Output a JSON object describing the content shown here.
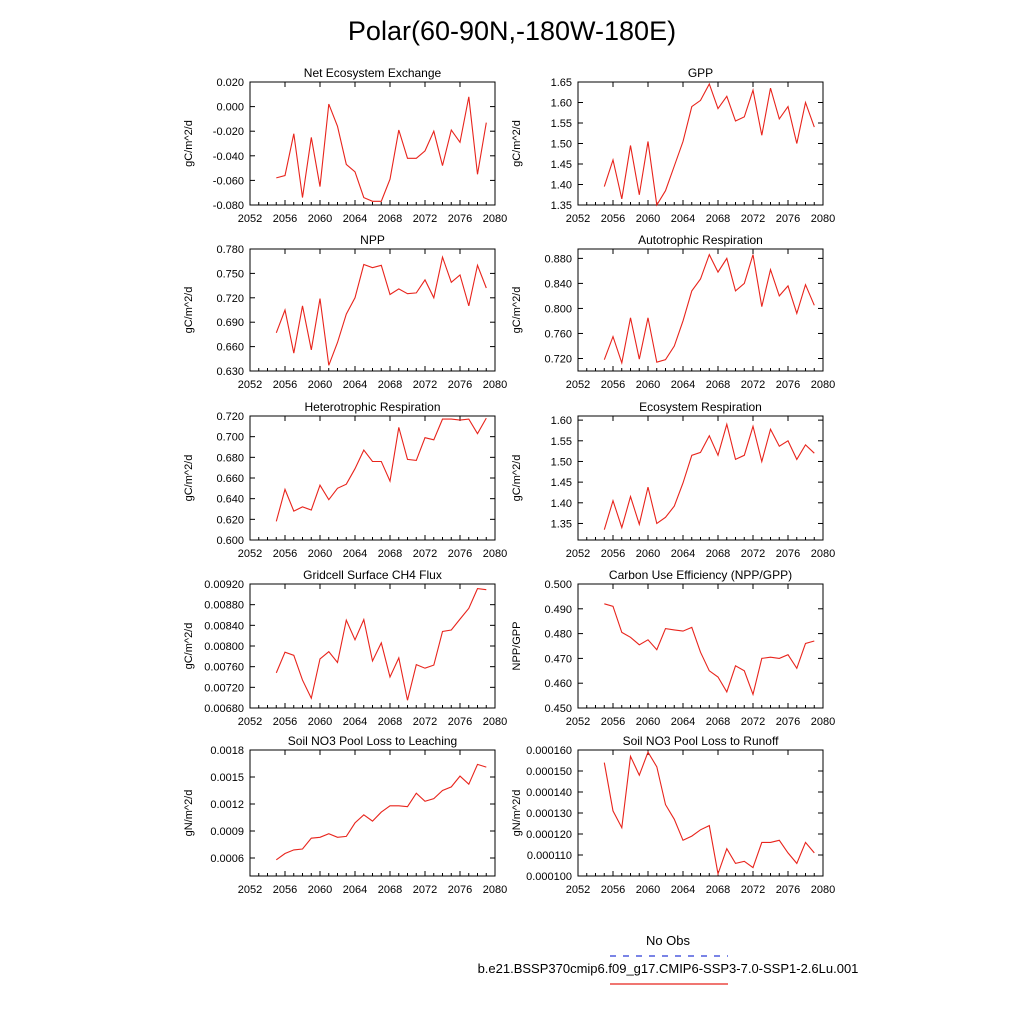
{
  "title": "Polar(60-90N,-180W-180E)",
  "legend": {
    "entries": [
      {
        "label": "No Obs",
        "color": "#2b3bd6",
        "style": "dashed"
      },
      {
        "label": "b.e21.BSSP370cmip6.f09_g17.CMIP6-SSP3-7.0-SSP1-2.6Lu.001",
        "color": "#e8241c",
        "style": "solid"
      }
    ]
  },
  "chart_data": [
    {
      "type": "line",
      "title": "Net Ecosystem Exchange",
      "ylabel": "gC/m^2/d",
      "xlim": [
        2052,
        2080
      ],
      "xticks": [
        "2052",
        "2056",
        "2060",
        "2064",
        "2068",
        "2072",
        "2076",
        "2080"
      ],
      "ylim": [
        -0.08,
        0.02
      ],
      "yticks": [
        "0.020",
        "0.000",
        "-0.020",
        "-0.040",
        "-0.060",
        "-0.080"
      ],
      "ytick_values": [
        0.02,
        0.0,
        -0.02,
        -0.04,
        -0.06,
        -0.08
      ],
      "color": "#e8241c",
      "x": [
        2055,
        2056,
        2057,
        2058,
        2059,
        2060,
        2061,
        2062,
        2063,
        2064,
        2065,
        2066,
        2067,
        2068,
        2069,
        2070,
        2071,
        2072,
        2073,
        2074,
        2075,
        2076,
        2077,
        2078,
        2079
      ],
      "y": [
        -0.058,
        -0.056,
        -0.022,
        -0.074,
        -0.025,
        -0.065,
        0.002,
        -0.016,
        -0.047,
        -0.053,
        -0.074,
        -0.077,
        -0.077,
        -0.059,
        -0.019,
        -0.042,
        -0.042,
        -0.036,
        -0.02,
        -0.048,
        -0.019,
        -0.029,
        0.008,
        -0.055,
        -0.013
      ]
    },
    {
      "type": "line",
      "title": "GPP",
      "ylabel": "gC/m^2/d",
      "xlim": [
        2052,
        2080
      ],
      "xticks": [
        "2052",
        "2056",
        "2060",
        "2064",
        "2068",
        "2072",
        "2076",
        "2080"
      ],
      "ylim": [
        1.35,
        1.65
      ],
      "yticks": [
        "1.65",
        "1.60",
        "1.55",
        "1.50",
        "1.45",
        "1.40",
        "1.35"
      ],
      "ytick_values": [
        1.65,
        1.6,
        1.55,
        1.5,
        1.45,
        1.4,
        1.35
      ],
      "color": "#e8241c",
      "x": [
        2055,
        2056,
        2057,
        2058,
        2059,
        2060,
        2061,
        2062,
        2063,
        2064,
        2065,
        2066,
        2067,
        2068,
        2069,
        2070,
        2071,
        2072,
        2073,
        2074,
        2075,
        2076,
        2077,
        2078,
        2079
      ],
      "y": [
        1.395,
        1.46,
        1.365,
        1.495,
        1.375,
        1.505,
        1.35,
        1.385,
        1.445,
        1.505,
        1.59,
        1.605,
        1.645,
        1.585,
        1.615,
        1.555,
        1.565,
        1.63,
        1.52,
        1.635,
        1.56,
        1.59,
        1.5,
        1.6,
        1.54
      ]
    },
    {
      "type": "line",
      "title": "NPP",
      "ylabel": "gC/m^2/d",
      "xlim": [
        2052,
        2080
      ],
      "xticks": [
        "2052",
        "2056",
        "2060",
        "2064",
        "2068",
        "2072",
        "2076",
        "2080"
      ],
      "ylim": [
        0.63,
        0.78
      ],
      "yticks": [
        "0.780",
        "0.750",
        "0.720",
        "0.690",
        "0.660",
        "0.630"
      ],
      "ytick_values": [
        0.78,
        0.75,
        0.72,
        0.69,
        0.66,
        0.63
      ],
      "color": "#e8241c",
      "x": [
        2055,
        2056,
        2057,
        2058,
        2059,
        2060,
        2061,
        2062,
        2063,
        2064,
        2065,
        2066,
        2067,
        2068,
        2069,
        2070,
        2071,
        2072,
        2073,
        2074,
        2075,
        2076,
        2077,
        2078,
        2079
      ],
      "y": [
        0.677,
        0.705,
        0.652,
        0.71,
        0.656,
        0.719,
        0.637,
        0.665,
        0.7,
        0.72,
        0.761,
        0.757,
        0.76,
        0.724,
        0.731,
        0.725,
        0.726,
        0.742,
        0.72,
        0.77,
        0.739,
        0.748,
        0.71,
        0.76,
        0.732
      ]
    },
    {
      "type": "line",
      "title": "Autotrophic Respiration",
      "ylabel": "gC/m^2/d",
      "xlim": [
        2052,
        2080
      ],
      "xticks": [
        "2052",
        "2056",
        "2060",
        "2064",
        "2068",
        "2072",
        "2076",
        "2080"
      ],
      "ylim": [
        0.7,
        0.895
      ],
      "yticks": [
        "0.880",
        "0.840",
        "0.800",
        "0.760",
        "0.720"
      ],
      "ytick_values": [
        0.88,
        0.84,
        0.8,
        0.76,
        0.72
      ],
      "color": "#e8241c",
      "x": [
        2055,
        2056,
        2057,
        2058,
        2059,
        2060,
        2061,
        2062,
        2063,
        2064,
        2065,
        2066,
        2067,
        2068,
        2069,
        2070,
        2071,
        2072,
        2073,
        2074,
        2075,
        2076,
        2077,
        2078,
        2079
      ],
      "y": [
        0.718,
        0.755,
        0.713,
        0.785,
        0.719,
        0.785,
        0.714,
        0.718,
        0.74,
        0.78,
        0.828,
        0.847,
        0.886,
        0.858,
        0.88,
        0.828,
        0.84,
        0.886,
        0.803,
        0.862,
        0.82,
        0.836,
        0.792,
        0.838,
        0.805
      ]
    },
    {
      "type": "line",
      "title": "Heterotrophic Respiration",
      "ylabel": "gC/m^2/d",
      "xlim": [
        2052,
        2080
      ],
      "xticks": [
        "2052",
        "2056",
        "2060",
        "2064",
        "2068",
        "2072",
        "2076",
        "2080"
      ],
      "ylim": [
        0.6,
        0.72
      ],
      "yticks": [
        "0.720",
        "0.700",
        "0.680",
        "0.660",
        "0.640",
        "0.620",
        "0.600"
      ],
      "ytick_values": [
        0.72,
        0.7,
        0.68,
        0.66,
        0.64,
        0.62,
        0.6
      ],
      "color": "#e8241c",
      "x": [
        2055,
        2056,
        2057,
        2058,
        2059,
        2060,
        2061,
        2062,
        2063,
        2064,
        2065,
        2066,
        2067,
        2068,
        2069,
        2070,
        2071,
        2072,
        2073,
        2074,
        2075,
        2076,
        2077,
        2078,
        2079
      ],
      "y": [
        0.618,
        0.649,
        0.628,
        0.632,
        0.629,
        0.653,
        0.639,
        0.65,
        0.654,
        0.669,
        0.687,
        0.676,
        0.676,
        0.657,
        0.709,
        0.678,
        0.677,
        0.699,
        0.697,
        0.717,
        0.717,
        0.716,
        0.717,
        0.703,
        0.718
      ]
    },
    {
      "type": "line",
      "title": "Ecosystem Respiration",
      "ylabel": "gC/m^2/d",
      "xlim": [
        2052,
        2080
      ],
      "xticks": [
        "2052",
        "2056",
        "2060",
        "2064",
        "2068",
        "2072",
        "2076",
        "2080"
      ],
      "ylim": [
        1.31,
        1.61
      ],
      "yticks": [
        "1.60",
        "1.55",
        "1.50",
        "1.45",
        "1.40",
        "1.35"
      ],
      "ytick_values": [
        1.6,
        1.55,
        1.5,
        1.45,
        1.4,
        1.35
      ],
      "color": "#e8241c",
      "x": [
        2055,
        2056,
        2057,
        2058,
        2059,
        2060,
        2061,
        2062,
        2063,
        2064,
        2065,
        2066,
        2067,
        2068,
        2069,
        2070,
        2071,
        2072,
        2073,
        2074,
        2075,
        2076,
        2077,
        2078,
        2079
      ],
      "y": [
        1.335,
        1.405,
        1.34,
        1.415,
        1.348,
        1.438,
        1.35,
        1.365,
        1.392,
        1.448,
        1.515,
        1.522,
        1.562,
        1.515,
        1.59,
        1.505,
        1.515,
        1.585,
        1.5,
        1.578,
        1.537,
        1.55,
        1.505,
        1.54,
        1.52
      ]
    },
    {
      "type": "line",
      "title": "Gridcell Surface CH4 Flux",
      "ylabel": "gC/m^2/d",
      "xlim": [
        2052,
        2080
      ],
      "xticks": [
        "2052",
        "2056",
        "2060",
        "2064",
        "2068",
        "2072",
        "2076",
        "2080"
      ],
      "ylim": [
        0.0068,
        0.0092
      ],
      "yticks": [
        "0.00920",
        "0.00880",
        "0.00840",
        "0.00800",
        "0.00760",
        "0.00720",
        "0.00680"
      ],
      "ytick_values": [
        0.0092,
        0.0088,
        0.0084,
        0.008,
        0.0076,
        0.0072,
        0.0068
      ],
      "color": "#e8241c",
      "x": [
        2055,
        2056,
        2057,
        2058,
        2059,
        2060,
        2061,
        2062,
        2063,
        2064,
        2065,
        2066,
        2067,
        2068,
        2069,
        2070,
        2071,
        2072,
        2073,
        2074,
        2075,
        2076,
        2077,
        2078,
        2079
      ],
      "y": [
        0.00748,
        0.00788,
        0.00782,
        0.00734,
        0.00699,
        0.00775,
        0.00789,
        0.00768,
        0.0085,
        0.00812,
        0.00851,
        0.00771,
        0.00806,
        0.0074,
        0.00777,
        0.00695,
        0.00764,
        0.00757,
        0.00763,
        0.00828,
        0.00831,
        0.00852,
        0.00873,
        0.00911,
        0.00909
      ]
    },
    {
      "type": "line",
      "title": "Carbon Use Efficiency (NPP/GPP)",
      "ylabel": "NPP/GPP",
      "xlim": [
        2052,
        2080
      ],
      "xticks": [
        "2052",
        "2056",
        "2060",
        "2064",
        "2068",
        "2072",
        "2076",
        "2080"
      ],
      "ylim": [
        0.45,
        0.5
      ],
      "yticks": [
        "0.500",
        "0.490",
        "0.480",
        "0.470",
        "0.460",
        "0.450"
      ],
      "ytick_values": [
        0.5,
        0.49,
        0.48,
        0.47,
        0.46,
        0.45
      ],
      "color": "#e8241c",
      "x": [
        2055,
        2056,
        2057,
        2058,
        2059,
        2060,
        2061,
        2062,
        2063,
        2064,
        2065,
        2066,
        2067,
        2068,
        2069,
        2070,
        2071,
        2072,
        2073,
        2074,
        2075,
        2076,
        2077,
        2078,
        2079
      ],
      "y": [
        0.492,
        0.491,
        0.4805,
        0.4785,
        0.4755,
        0.4775,
        0.4735,
        0.482,
        0.4815,
        0.481,
        0.4825,
        0.4725,
        0.465,
        0.4625,
        0.4565,
        0.467,
        0.465,
        0.4555,
        0.47,
        0.4705,
        0.47,
        0.4715,
        0.466,
        0.476,
        0.477
      ]
    },
    {
      "type": "line",
      "title": "Soil NO3 Pool Loss to Leaching",
      "ylabel": "gN/m^2/d",
      "xlim": [
        2052,
        2080
      ],
      "xticks": [
        "2052",
        "2056",
        "2060",
        "2064",
        "2068",
        "2072",
        "2076",
        "2080"
      ],
      "ylim": [
        0.0004,
        0.0018
      ],
      "yticks": [
        "0.0018",
        "0.0015",
        "0.0012",
        "0.0009",
        "0.0006"
      ],
      "ytick_values": [
        0.0018,
        0.0015,
        0.0012,
        0.0009,
        0.0006
      ],
      "color": "#e8241c",
      "x": [
        2055,
        2056,
        2057,
        2058,
        2059,
        2060,
        2061,
        2062,
        2063,
        2064,
        2065,
        2066,
        2067,
        2068,
        2069,
        2070,
        2071,
        2072,
        2073,
        2074,
        2075,
        2076,
        2077,
        2078,
        2079
      ],
      "y": [
        0.00058,
        0.00065,
        0.00069,
        0.0007,
        0.00082,
        0.00083,
        0.00087,
        0.00083,
        0.00084,
        0.00099,
        0.00108,
        0.00101,
        0.00111,
        0.00118,
        0.00118,
        0.00117,
        0.00132,
        0.00123,
        0.00126,
        0.00135,
        0.00139,
        0.00151,
        0.00142,
        0.00164,
        0.00161
      ]
    },
    {
      "type": "line",
      "title": "Soil NO3 Pool Loss to Runoff",
      "ylabel": "gN/m^2/d",
      "xlim": [
        2052,
        2080
      ],
      "xticks": [
        "2052",
        "2056",
        "2060",
        "2064",
        "2068",
        "2072",
        "2076",
        "2080"
      ],
      "ylim": [
        0.0001,
        0.00016
      ],
      "yticks": [
        "0.000160",
        "0.000150",
        "0.000140",
        "0.000130",
        "0.000120",
        "0.000110",
        "0.000100"
      ],
      "ytick_values": [
        0.00016,
        0.00015,
        0.00014,
        0.00013,
        0.00012,
        0.00011,
        0.0001
      ],
      "color": "#e8241c",
      "x": [
        2055,
        2056,
        2057,
        2058,
        2059,
        2060,
        2061,
        2062,
        2063,
        2064,
        2065,
        2066,
        2067,
        2068,
        2069,
        2070,
        2071,
        2072,
        2073,
        2074,
        2075,
        2076,
        2077,
        2078,
        2079
      ],
      "y": [
        0.000154,
        0.000131,
        0.000123,
        0.000157,
        0.000148,
        0.000159,
        0.000152,
        0.000134,
        0.000127,
        0.000117,
        0.000119,
        0.000122,
        0.000124,
        0.000101,
        0.000113,
        0.000106,
        0.000107,
        0.000104,
        0.000116,
        0.000116,
        0.000117,
        0.000111,
        0.000106,
        0.000116,
        0.000111
      ]
    }
  ]
}
